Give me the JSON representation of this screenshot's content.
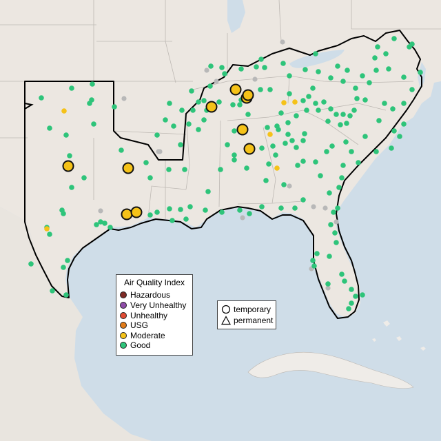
{
  "map": {
    "colors": {
      "land_us": "#ece7e1",
      "land_other": "#efece8",
      "water": "#cfdde8",
      "state_line": "#bdb8b3",
      "region_outline": "#000000",
      "marker_outline": "#111111",
      "unavailable": "#b8b8b8"
    }
  },
  "legend_aqi": {
    "title": "Air Quality Index",
    "items": [
      {
        "label": "Hazardous",
        "color": "#7e2b26"
      },
      {
        "label": "Very Unhealthy",
        "color": "#8e4ca8"
      },
      {
        "label": "Unhealthy",
        "color": "#e04b33"
      },
      {
        "label": "USG",
        "color": "#e07b1a"
      },
      {
        "label": "Moderate",
        "color": "#f5c218"
      },
      {
        "label": "Good",
        "color": "#2ec47a"
      }
    ]
  },
  "legend_monitor": {
    "items": [
      {
        "label": "temporary",
        "shape": "circle-icon"
      },
      {
        "label": "permanent",
        "shape": "triangle-icon"
      }
    ]
  }
}
